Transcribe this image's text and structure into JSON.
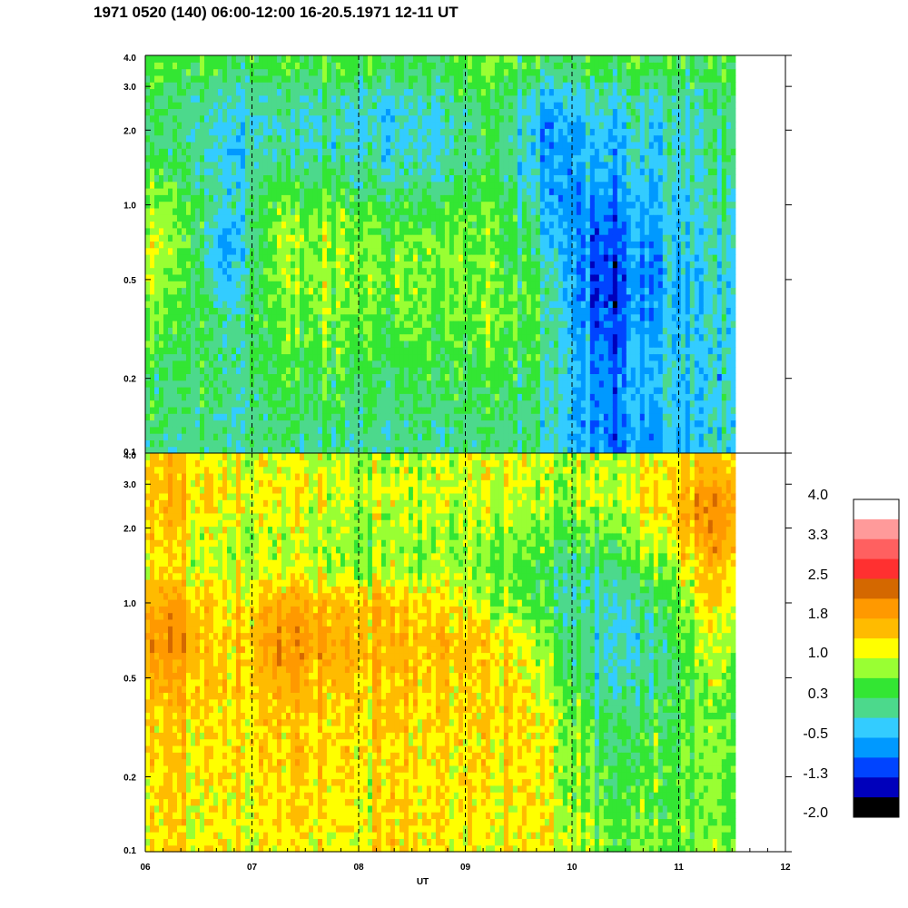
{
  "title": "1971 0520 (140) 06:00-12:00 16-20.5.1971 12-11 UT",
  "chart_data": [
    {
      "type": "heatmap",
      "panel": "upper",
      "x_unit": "UT hour",
      "xlim": [
        6,
        12
      ],
      "data_end_x": 11.53,
      "ylim": [
        0.1,
        4.0
      ],
      "y_scale": "log",
      "y_ticks": [
        0.1,
        0.2,
        0.5,
        1.0,
        2.0,
        3.0,
        4.0
      ],
      "y_tick_labels": [
        "0.1",
        "0.2",
        "0.5",
        "1.0",
        "2.0",
        "3.0",
        "4.0"
      ],
      "dashed_hour_markers": [
        7,
        8,
        9,
        10,
        11
      ],
      "rows_y": [
        0.12,
        0.2,
        0.35,
        0.5,
        0.7,
        1.0,
        1.4,
        2.0,
        2.8,
        3.6
      ],
      "cols_x": [
        6.25,
        6.75,
        7.25,
        7.75,
        8.25,
        8.75,
        9.25,
        9.75,
        10.25,
        10.75,
        11.25
      ],
      "z_approx": [
        [
          -0.3,
          -0.3,
          -0.3,
          -0.3,
          -0.3,
          -0.3,
          -0.3,
          -0.3,
          -1.3,
          -1.0,
          -0.5
        ],
        [
          -0.2,
          -0.2,
          0.0,
          0.0,
          0.0,
          0.0,
          0.0,
          -0.2,
          -1.3,
          -0.8,
          -0.5
        ],
        [
          0.2,
          -0.3,
          0.2,
          0.3,
          0.2,
          0.2,
          0.3,
          0.0,
          -1.6,
          -1.0,
          -0.5
        ],
        [
          0.4,
          -0.8,
          0.4,
          0.4,
          0.4,
          0.3,
          0.3,
          -0.2,
          -1.7,
          -1.2,
          -0.5
        ],
        [
          0.5,
          -1.0,
          0.5,
          0.4,
          0.3,
          0.3,
          0.2,
          -0.5,
          -1.5,
          -1.0,
          -0.4
        ],
        [
          0.3,
          -0.5,
          0.2,
          0.2,
          0.0,
          0.0,
          0.2,
          -0.8,
          -1.3,
          -0.9,
          -0.3
        ],
        [
          0.0,
          -0.6,
          -0.2,
          -0.3,
          -0.4,
          -0.4,
          -0.2,
          -0.9,
          -1.0,
          -0.7,
          -0.2
        ],
        [
          -0.3,
          -0.6,
          -0.5,
          -0.5,
          -0.6,
          -0.6,
          -0.1,
          -1.0,
          -0.8,
          -0.6,
          -0.2
        ],
        [
          -0.2,
          -0.4,
          -0.4,
          -0.3,
          -0.4,
          -0.3,
          0.0,
          -0.6,
          -0.5,
          -0.4,
          -0.1
        ],
        [
          0.1,
          0.0,
          0.0,
          0.1,
          0.0,
          0.0,
          0.2,
          -0.1,
          0.0,
          0.0,
          0.1
        ]
      ]
    },
    {
      "type": "heatmap",
      "panel": "lower",
      "x_unit": "UT hour",
      "xlim": [
        6,
        12
      ],
      "data_end_x": 11.53,
      "ylim": [
        0.1,
        4.0
      ],
      "y_scale": "log",
      "y_ticks": [
        0.1,
        0.2,
        0.5,
        1.0,
        2.0,
        3.0,
        4.0
      ],
      "y_tick_labels": [
        "0.1",
        "0.2",
        "0.5",
        "1.0",
        "2.0",
        "3.0",
        "4.0"
      ],
      "x_ticks": [
        6,
        7,
        8,
        9,
        10,
        11,
        12
      ],
      "x_tick_labels": [
        "06",
        "07",
        "08",
        "09",
        "10",
        "11",
        "12"
      ],
      "xlabel": "UT",
      "dashed_hour_markers": [
        7,
        8,
        9,
        10,
        11
      ],
      "rows_y": [
        0.12,
        0.2,
        0.35,
        0.5,
        0.7,
        1.0,
        1.4,
        2.0,
        2.8,
        3.6
      ],
      "cols_x": [
        6.25,
        6.75,
        7.25,
        7.75,
        8.25,
        8.75,
        9.25,
        9.75,
        10.25,
        10.75,
        11.25
      ],
      "z_approx": [
        [
          0.9,
          0.8,
          0.9,
          0.9,
          0.9,
          0.9,
          0.8,
          0.9,
          0.3,
          0.3,
          0.3
        ],
        [
          1.0,
          0.9,
          1.0,
          1.0,
          0.9,
          0.9,
          0.9,
          0.9,
          0.0,
          0.2,
          0.3
        ],
        [
          1.1,
          1.0,
          1.1,
          1.1,
          1.0,
          1.0,
          1.0,
          0.9,
          -0.2,
          0.0,
          0.3
        ],
        [
          1.3,
          1.0,
          1.3,
          1.2,
          1.1,
          1.1,
          1.0,
          0.6,
          -0.5,
          -0.3,
          0.4
        ],
        [
          1.6,
          1.0,
          1.6,
          1.5,
          1.2,
          1.2,
          1.1,
          0.4,
          -0.6,
          -0.3,
          0.6
        ],
        [
          1.4,
          0.9,
          1.3,
          1.3,
          1.1,
          1.0,
          0.5,
          0.0,
          -0.6,
          -0.2,
          0.9
        ],
        [
          0.8,
          0.6,
          0.6,
          0.6,
          0.4,
          0.4,
          0.3,
          0.0,
          -0.3,
          0.3,
          1.1
        ],
        [
          1.1,
          0.7,
          0.6,
          0.6,
          0.4,
          0.5,
          0.5,
          0.3,
          0.2,
          0.8,
          1.5
        ],
        [
          1.2,
          1.0,
          0.8,
          0.8,
          0.6,
          0.6,
          0.7,
          0.6,
          0.6,
          1.0,
          1.5
        ],
        [
          1.0,
          0.8,
          0.7,
          0.7,
          0.5,
          0.6,
          0.8,
          0.6,
          0.5,
          0.8,
          1.1
        ]
      ]
    }
  ],
  "colorbar": {
    "levels": [
      -2.0,
      -1.3,
      -0.5,
      0.3,
      1.0,
      1.8,
      2.5,
      3.3,
      4.0
    ],
    "labels": [
      "4.0",
      "3.3",
      "2.5",
      "1.8",
      "1.0",
      "0.3",
      "-0.5",
      "-1.3",
      "-2.0"
    ],
    "colors_top_to_bottom": [
      "#ffffff",
      "#ff9a9a",
      "#ff6060",
      "#ff3030",
      "#d46800",
      "#ff9900",
      "#ffbb00",
      "#ffff00",
      "#99ff33",
      "#33e633",
      "#4cd98c",
      "#33ccff",
      "#0099ff",
      "#0044ff",
      "#0000bb",
      "#000000"
    ],
    "bin_edges": [
      -2.35,
      -2.0,
      -1.65,
      -1.3,
      -0.9,
      -0.5,
      -0.1,
      0.3,
      0.65,
      1.0,
      1.4,
      1.8,
      2.15,
      2.5,
      2.9,
      3.3,
      4.0
    ]
  }
}
